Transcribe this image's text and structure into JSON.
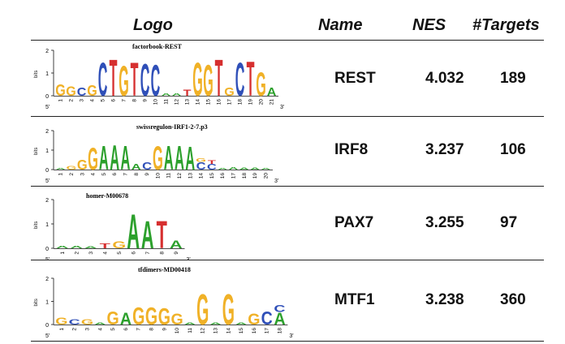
{
  "header": {
    "logo": "Logo",
    "name": "Name",
    "nes": "NES",
    "targets": "#Targets"
  },
  "axis": {
    "bits": "bits",
    "five_prime": "5'",
    "three_prime": "3'"
  },
  "colors": {
    "A": "#2ca02c",
    "C": "#2f4fb8",
    "G": "#f0b127",
    "T": "#d62f2f"
  },
  "rows": [
    {
      "motif": "factorbook-REST",
      "name": "REST",
      "nes": "4.032",
      "targets": "189",
      "yticks": [
        "0",
        "1",
        "2"
      ],
      "positions": [
        "1",
        "2",
        "3",
        "4",
        "5",
        "6",
        "7",
        "8",
        "9",
        "10",
        "11",
        "12",
        "13",
        "14",
        "15",
        "16",
        "17",
        "18",
        "19",
        "20",
        "21"
      ],
      "letters": [
        [
          [
            "G",
            0.55
          ]
        ],
        [
          [
            "G",
            0.45
          ]
        ],
        [
          [
            "C",
            0.4
          ]
        ],
        [
          [
            "G",
            0.5
          ]
        ],
        [
          [
            "C",
            1.55
          ]
        ],
        [
          [
            "T",
            1.7
          ]
        ],
        [
          [
            "G",
            1.4
          ]
        ],
        [
          [
            "T",
            1.55
          ]
        ],
        [
          [
            "C",
            1.5
          ]
        ],
        [
          [
            "C",
            1.45
          ]
        ],
        [
          [
            "A",
            0.12
          ]
        ],
        [
          [
            "A",
            0.12
          ]
        ],
        [
          [
            "T",
            0.3
          ]
        ],
        [
          [
            "G",
            1.55
          ]
        ],
        [
          [
            "G",
            1.45
          ]
        ],
        [
          [
            "T",
            1.7
          ]
        ],
        [
          [
            "G",
            0.4
          ]
        ],
        [
          [
            "C",
            1.55
          ]
        ],
        [
          [
            "T",
            1.6
          ]
        ],
        [
          [
            "G",
            1.1
          ]
        ],
        [
          [
            "A",
            0.4
          ]
        ]
      ]
    },
    {
      "motif": "swissregulon-IRF1-2-7.p3",
      "name": "IRF8",
      "nes": "3.237",
      "targets": "106",
      "yticks": [
        "0",
        "1",
        "2"
      ],
      "positions": [
        "1",
        "2",
        "3",
        "4",
        "5",
        "6",
        "7",
        "8",
        "9",
        "10",
        "11",
        "12",
        "13",
        "14",
        "15",
        "16",
        "17",
        "18",
        "19",
        "20"
      ],
      "letters": [
        [
          [
            "A",
            0.08
          ]
        ],
        [
          [
            "G",
            0.2
          ]
        ],
        [
          [
            "G",
            0.55
          ]
        ],
        [
          [
            "G",
            1.2
          ]
        ],
        [
          [
            "A",
            1.3
          ]
        ],
        [
          [
            "A",
            1.35
          ]
        ],
        [
          [
            "A",
            1.3
          ]
        ],
        [
          [
            "A",
            0.3
          ]
        ],
        [
          [
            "C",
            0.4
          ]
        ],
        [
          [
            "G",
            1.3
          ]
        ],
        [
          [
            "A",
            1.3
          ]
        ],
        [
          [
            "A",
            1.3
          ]
        ],
        [
          [
            "A",
            1.25
          ]
        ],
        [
          [
            "C",
            0.4
          ],
          [
            "G",
            0.2
          ]
        ],
        [
          [
            "C",
            0.3
          ],
          [
            "T",
            0.2
          ]
        ],
        [
          [
            "A",
            0.08
          ]
        ],
        [
          [
            "A",
            0.15
          ]
        ],
        [
          [
            "A",
            0.1
          ]
        ],
        [
          [
            "A",
            0.1
          ]
        ],
        [
          [
            "A",
            0.08
          ]
        ]
      ]
    },
    {
      "motif": "homer-M00678",
      "name": "PAX7",
      "nes": "3.255",
      "targets": "97",
      "yticks": [
        "0",
        "1",
        "2"
      ],
      "positions": [
        "1",
        "2",
        "3",
        "4",
        "5",
        "6",
        "7",
        "8",
        "9"
      ],
      "letters": [
        [
          [
            "A",
            0.12
          ]
        ],
        [
          [
            "A",
            0.12
          ]
        ],
        [
          [
            "A",
            0.08
          ]
        ],
        [
          [
            "T",
            0.2
          ]
        ],
        [
          [
            "G",
            0.3
          ]
        ],
        [
          [
            "A",
            1.5
          ]
        ],
        [
          [
            "A",
            1.2
          ]
        ],
        [
          [
            "T",
            1.2
          ]
        ],
        [
          [
            "A",
            0.35
          ]
        ]
      ]
    },
    {
      "motif": "tfdimers-MD00418",
      "name": "MTF1",
      "nes": "3.238",
      "targets": "360",
      "yticks": [
        "0",
        "1",
        "2"
      ],
      "positions": [
        "1",
        "2",
        "3",
        "4",
        "5",
        "6",
        "7",
        "8",
        "9",
        "10",
        "11",
        "12",
        "13",
        "14",
        "15",
        "16",
        "17",
        "18"
      ],
      "letters": [
        [
          [
            "G",
            0.3
          ]
        ],
        [
          [
            "C",
            0.25
          ]
        ],
        [
          [
            "G",
            0.25
          ]
        ],
        [
          [
            "A",
            0.1
          ]
        ],
        [
          [
            "G",
            0.6
          ]
        ],
        [
          [
            "A",
            0.55
          ]
        ],
        [
          [
            "G",
            0.8
          ]
        ],
        [
          [
            "G",
            0.8
          ]
        ],
        [
          [
            "G",
            0.75
          ]
        ],
        [
          [
            "G",
            0.5
          ]
        ],
        [
          [
            "A",
            0.1
          ]
        ],
        [
          [
            "G",
            1.4
          ]
        ],
        [
          [
            "A",
            0.1
          ]
        ],
        [
          [
            "G",
            1.4
          ]
        ],
        [
          [
            "A",
            0.1
          ]
        ],
        [
          [
            "G",
            0.5
          ]
        ],
        [
          [
            "C",
            0.6
          ]
        ],
        [
          [
            "A",
            0.55
          ],
          [
            "C",
            0.3
          ]
        ]
      ]
    }
  ]
}
